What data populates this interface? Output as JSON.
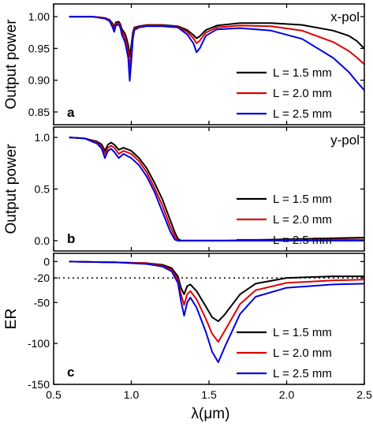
{
  "chart_data": [
    {
      "type": "line",
      "panel": "a",
      "annotation": "x-pol",
      "ylabel": "Output power",
      "xlabel": "",
      "xlim": [
        0.5,
        2.5
      ],
      "ylim": [
        0.83,
        1.02
      ],
      "yticks": [
        0.85,
        0.9,
        0.95,
        1.0
      ],
      "ytick_labels": [
        "0.85",
        "0.90",
        "0.95",
        "1.00"
      ],
      "legend_position": "bottom-right",
      "series": [
        {
          "name": "L = 1.5 mm",
          "color": "#000000",
          "x": [
            0.6,
            0.75,
            0.83,
            0.86,
            0.88,
            0.89,
            0.9,
            0.92,
            0.93,
            0.94,
            0.96,
            0.97,
            0.98,
            0.99,
            1.0,
            1.01,
            1.02,
            1.05,
            1.1,
            1.2,
            1.3,
            1.36,
            1.4,
            1.42,
            1.44,
            1.48,
            1.55,
            1.7,
            1.9,
            2.1,
            2.3,
            2.4,
            2.45,
            2.5
          ],
          "y": [
            1.0,
            1.0,
            0.998,
            0.995,
            0.989,
            0.984,
            0.991,
            0.992,
            0.988,
            0.98,
            0.973,
            0.965,
            0.955,
            0.937,
            0.955,
            0.975,
            0.983,
            0.985,
            0.987,
            0.987,
            0.985,
            0.979,
            0.971,
            0.966,
            0.969,
            0.979,
            0.986,
            0.99,
            0.99,
            0.987,
            0.978,
            0.97,
            0.962,
            0.95
          ]
        },
        {
          "name": "L = 2.0 mm",
          "color": "#dd0000",
          "x": [
            0.6,
            0.75,
            0.83,
            0.86,
            0.88,
            0.89,
            0.9,
            0.92,
            0.93,
            0.94,
            0.96,
            0.97,
            0.98,
            0.99,
            1.0,
            1.01,
            1.02,
            1.05,
            1.1,
            1.2,
            1.3,
            1.36,
            1.4,
            1.42,
            1.44,
            1.48,
            1.55,
            1.7,
            1.9,
            2.1,
            2.3,
            2.4,
            2.45,
            2.5
          ],
          "y": [
            1.0,
            1.0,
            0.998,
            0.994,
            0.986,
            0.98,
            0.989,
            0.99,
            0.985,
            0.976,
            0.967,
            0.957,
            0.945,
            0.918,
            0.943,
            0.97,
            0.981,
            0.984,
            0.986,
            0.986,
            0.984,
            0.976,
            0.966,
            0.958,
            0.962,
            0.975,
            0.983,
            0.986,
            0.985,
            0.978,
            0.96,
            0.946,
            0.936,
            0.925
          ]
        },
        {
          "name": "L = 2.5 mm",
          "color": "#0000dd",
          "x": [
            0.6,
            0.75,
            0.83,
            0.86,
            0.88,
            0.89,
            0.9,
            0.92,
            0.93,
            0.94,
            0.96,
            0.97,
            0.98,
            0.99,
            1.0,
            1.01,
            1.02,
            1.05,
            1.1,
            1.2,
            1.3,
            1.36,
            1.4,
            1.42,
            1.44,
            1.48,
            1.55,
            1.7,
            1.9,
            2.1,
            2.3,
            2.4,
            2.45,
            2.5
          ],
          "y": [
            1.0,
            1.0,
            0.997,
            0.993,
            0.983,
            0.976,
            0.986,
            0.988,
            0.982,
            0.971,
            0.96,
            0.948,
            0.935,
            0.899,
            0.93,
            0.965,
            0.979,
            0.983,
            0.985,
            0.985,
            0.983,
            0.972,
            0.958,
            0.944,
            0.95,
            0.97,
            0.98,
            0.982,
            0.978,
            0.965,
            0.935,
            0.913,
            0.898,
            0.884
          ]
        }
      ]
    },
    {
      "type": "line",
      "panel": "b",
      "annotation": "y-pol",
      "ylabel": "Output power",
      "xlabel": "",
      "xlim": [
        0.5,
        2.5
      ],
      "ylim": [
        -0.1,
        1.1
      ],
      "yticks": [
        0.0,
        0.5,
        1.0
      ],
      "ytick_labels": [
        "0.0",
        "0.5",
        "1.0"
      ],
      "legend_position": "right",
      "series": [
        {
          "name": "L = 1.5 mm",
          "color": "#000000",
          "x": [
            0.6,
            0.7,
            0.78,
            0.81,
            0.83,
            0.85,
            0.87,
            0.89,
            0.92,
            0.95,
            1.0,
            1.05,
            1.1,
            1.15,
            1.2,
            1.25,
            1.28,
            1.3,
            1.32,
            1.4,
            1.6,
            1.9,
            2.2,
            2.5
          ],
          "y": [
            1.0,
            0.99,
            0.96,
            0.93,
            0.87,
            0.93,
            0.95,
            0.93,
            0.88,
            0.9,
            0.87,
            0.8,
            0.7,
            0.56,
            0.4,
            0.2,
            0.08,
            0.02,
            0.0,
            0.0,
            0.0,
            0.01,
            0.02,
            0.03
          ]
        },
        {
          "name": "L = 2.0 mm",
          "color": "#dd0000",
          "x": [
            0.6,
            0.7,
            0.78,
            0.81,
            0.83,
            0.85,
            0.87,
            0.89,
            0.92,
            0.95,
            1.0,
            1.05,
            1.1,
            1.15,
            1.2,
            1.25,
            1.28,
            1.3,
            1.32,
            1.4,
            1.6,
            1.9,
            2.2,
            2.5
          ],
          "y": [
            1.0,
            0.99,
            0.95,
            0.91,
            0.84,
            0.9,
            0.92,
            0.9,
            0.84,
            0.87,
            0.84,
            0.77,
            0.66,
            0.51,
            0.34,
            0.14,
            0.04,
            0.0,
            0.0,
            0.0,
            0.0,
            0.0,
            0.01,
            0.01
          ]
        },
        {
          "name": "L = 2.5 mm",
          "color": "#0000dd",
          "x": [
            0.6,
            0.7,
            0.78,
            0.81,
            0.83,
            0.85,
            0.87,
            0.89,
            0.92,
            0.95,
            1.0,
            1.05,
            1.1,
            1.15,
            1.2,
            1.25,
            1.28,
            1.3,
            1.32,
            1.4,
            1.6,
            1.9,
            2.2,
            2.5
          ],
          "y": [
            1.0,
            0.99,
            0.94,
            0.89,
            0.8,
            0.87,
            0.89,
            0.86,
            0.8,
            0.84,
            0.8,
            0.73,
            0.62,
            0.47,
            0.28,
            0.09,
            0.01,
            0.0,
            0.0,
            0.0,
            0.0,
            0.0,
            0.0,
            0.0
          ]
        }
      ]
    },
    {
      "type": "line",
      "panel": "c",
      "ylabel": "ER",
      "xlabel": "λ(μm)",
      "xlim": [
        0.5,
        2.5
      ],
      "ylim": [
        -150,
        10
      ],
      "xticks": [
        0.5,
        1.0,
        1.5,
        2.0,
        2.5
      ],
      "xtick_labels": [
        "0.5",
        "1.0",
        "1.5",
        "2.0",
        "2.5"
      ],
      "yticks": [
        0,
        -20,
        -50,
        -100,
        -150
      ],
      "ytick_labels": [
        "0",
        "-20",
        "-50",
        "-100",
        "-150"
      ],
      "reference_line": {
        "y": -20,
        "style": "dotted"
      },
      "legend_position": "bottom-right",
      "series": [
        {
          "name": "L = 1.5 mm",
          "color": "#000000",
          "x": [
            0.6,
            0.9,
            1.1,
            1.2,
            1.26,
            1.3,
            1.32,
            1.34,
            1.36,
            1.38,
            1.42,
            1.48,
            1.52,
            1.56,
            1.6,
            1.7,
            1.8,
            2.0,
            2.3,
            2.5
          ],
          "y": [
            0,
            -1,
            -2,
            -4,
            -8,
            -18,
            -32,
            -40,
            -30,
            -28,
            -36,
            -55,
            -68,
            -73,
            -65,
            -40,
            -27,
            -20,
            -18,
            -18
          ]
        },
        {
          "name": "L = 2.0 mm",
          "color": "#dd0000",
          "x": [
            0.6,
            0.9,
            1.1,
            1.2,
            1.26,
            1.3,
            1.32,
            1.34,
            1.36,
            1.38,
            1.42,
            1.48,
            1.52,
            1.56,
            1.6,
            1.7,
            1.8,
            2.0,
            2.3,
            2.5
          ],
          "y": [
            0,
            -1,
            -2,
            -5,
            -10,
            -22,
            -40,
            -53,
            -40,
            -36,
            -46,
            -70,
            -88,
            -98,
            -85,
            -52,
            -35,
            -26,
            -23,
            -22
          ]
        },
        {
          "name": "L = 2.5 mm",
          "color": "#0000dd",
          "x": [
            0.6,
            0.9,
            1.1,
            1.2,
            1.26,
            1.3,
            1.32,
            1.34,
            1.36,
            1.38,
            1.42,
            1.48,
            1.52,
            1.56,
            1.6,
            1.7,
            1.8,
            2.0,
            2.3,
            2.5
          ],
          "y": [
            0,
            -1,
            -3,
            -6,
            -12,
            -26,
            -48,
            -66,
            -50,
            -44,
            -56,
            -86,
            -110,
            -123,
            -105,
            -64,
            -43,
            -32,
            -28,
            -27
          ]
        }
      ]
    }
  ]
}
